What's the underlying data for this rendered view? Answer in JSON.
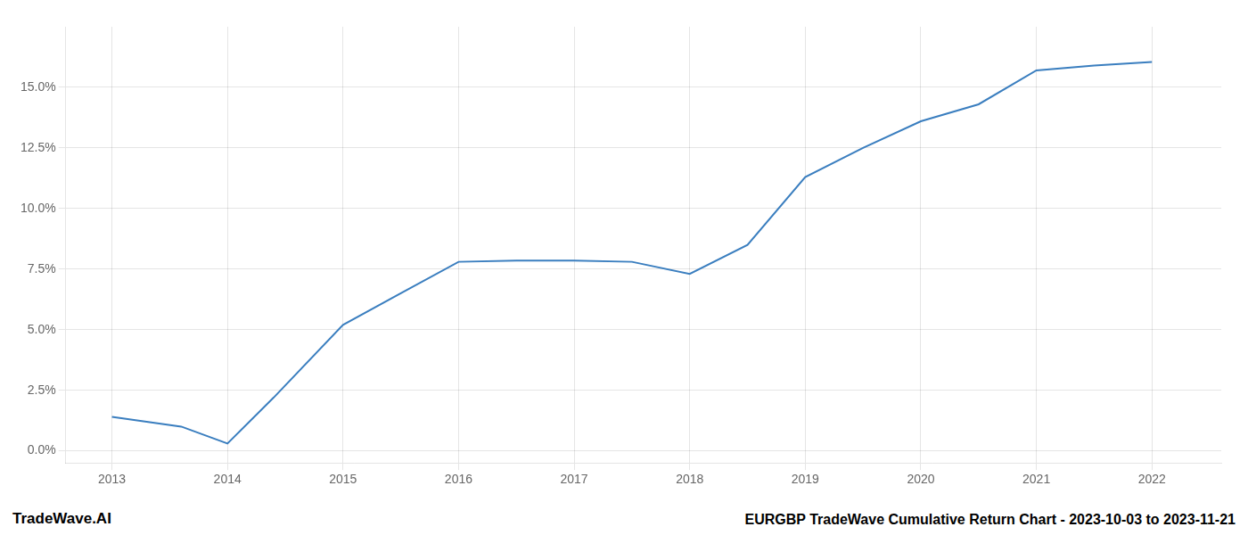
{
  "chart_data": {
    "type": "line",
    "x": [
      2013,
      2013.6,
      2014,
      2014.4,
      2015,
      2015.5,
      2016,
      2016.5,
      2017,
      2017.5,
      2018,
      2018.5,
      2019,
      2019.5,
      2020,
      2020.5,
      2021,
      2021.5,
      2022
    ],
    "values": [
      1.4,
      1.0,
      0.3,
      2.2,
      5.2,
      6.5,
      7.8,
      7.85,
      7.85,
      7.8,
      7.3,
      8.5,
      11.3,
      12.5,
      13.6,
      14.3,
      15.7,
      15.9,
      16.05
    ],
    "color": "#3a7ebf",
    "xlim": [
      2012.6,
      2022.6
    ],
    "xticks": [
      2013,
      2014,
      2015,
      2016,
      2017,
      2018,
      2019,
      2020,
      2021,
      2022
    ],
    "ylim": [
      -0.5,
      17.5
    ],
    "yticks": [
      {
        "value": 0.0,
        "label": "0.0%"
      },
      {
        "value": 2.5,
        "label": "2.5%"
      },
      {
        "value": 5.0,
        "label": "5.0%"
      },
      {
        "value": 7.5,
        "label": "7.5%"
      },
      {
        "value": 10.0,
        "label": "10.0%"
      },
      {
        "value": 12.5,
        "label": "12.5%"
      },
      {
        "value": 15.0,
        "label": "15.0%"
      }
    ],
    "grid": true,
    "annotations": [
      "TradeWave.AI",
      "EURGBP TradeWave Cumulative Return Chart - 2023-10-03 to 2023-11-21"
    ]
  }
}
